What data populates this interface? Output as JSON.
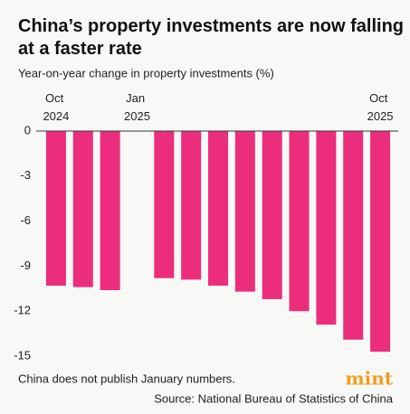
{
  "chart_data": {
    "type": "bar",
    "title": "China’s property investments are now falling at a faster rate",
    "subtitle": "Year-on-year change in property investments (%)",
    "categories": [
      "Oct 2024",
      null,
      null,
      "Jan 2025",
      null,
      null,
      null,
      null,
      null,
      null,
      null,
      null,
      "Oct 2025"
    ],
    "values": [
      -10.3,
      -10.4,
      -10.6,
      null,
      -9.8,
      -9.9,
      -10.3,
      -10.7,
      -11.2,
      -12.0,
      -12.9,
      -13.9,
      -14.7
    ],
    "color": "#ec2d7c",
    "ylim": [
      -15.3,
      0
    ],
    "yticks": [
      0,
      -3,
      -6,
      -9,
      -12,
      -15
    ],
    "grid": false,
    "note": "China does not publish January numbers.",
    "logo": "mint",
    "source": "Source: National Bureau of Statistics of China"
  }
}
